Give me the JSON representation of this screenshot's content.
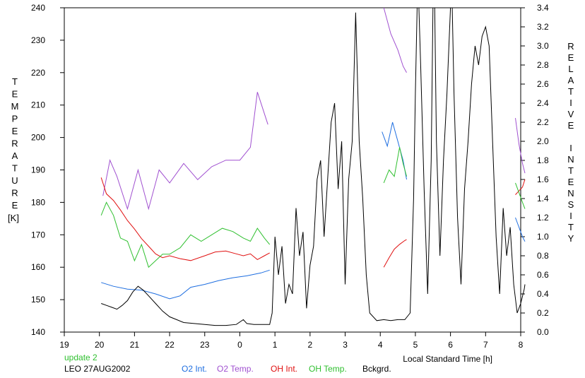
{
  "chart_data": {
    "type": "line",
    "title": "",
    "y_label_vertical": "TEMPERATURE",
    "y_unit": "[K]",
    "y2_label_vertical": "RELATIVE INTENSITY",
    "xlabel": "Local Standard Time [h]",
    "note": "update 2",
    "station_date": "LEO 27AUG2002",
    "xlim": [
      19,
      32
    ],
    "xticks": [
      19,
      20,
      21,
      22,
      23,
      24,
      25,
      26,
      27,
      28,
      29,
      30,
      31,
      32
    ],
    "xtick_labels": [
      "19",
      "20",
      "21",
      "22",
      "23",
      "0",
      "1",
      "2",
      "3",
      "4",
      "5",
      "6",
      "7",
      "8"
    ],
    "ylim": [
      140,
      240
    ],
    "yticks": [
      140,
      150,
      160,
      170,
      180,
      190,
      200,
      210,
      220,
      230,
      240
    ],
    "y2lim": [
      0.0,
      3.4
    ],
    "y2ticks": [
      "0.0",
      "0.2",
      "0.4",
      "0.6",
      "0.8",
      "1.0",
      "1.2",
      "1.4",
      "1.6",
      "1.8",
      "2.0",
      "2.2",
      "2.4",
      "2.6",
      "2.8",
      "3.0",
      "3.2",
      "3.4"
    ],
    "grid": false,
    "series": [
      {
        "name": "O2 Int.",
        "color": "#1e6ee0",
        "axis": "right",
        "segments": [
          [
            [
              20.05,
              0.52
            ],
            [
              20.4,
              0.48
            ],
            [
              20.8,
              0.45
            ],
            [
              21.2,
              0.44
            ],
            [
              21.6,
              0.4
            ],
            [
              22.0,
              0.35
            ],
            [
              22.3,
              0.38
            ],
            [
              22.6,
              0.47
            ],
            [
              23.0,
              0.5
            ],
            [
              23.4,
              0.54
            ],
            [
              23.8,
              0.57
            ],
            [
              24.2,
              0.59
            ],
            [
              24.6,
              0.62
            ],
            [
              24.85,
              0.65
            ]
          ],
          [
            [
              28.05,
              2.1
            ],
            [
              28.2,
              1.95
            ],
            [
              28.35,
              2.2
            ],
            [
              28.5,
              2.0
            ],
            [
              28.65,
              1.8
            ],
            [
              28.75,
              1.6
            ]
          ],
          [
            [
              31.85,
              1.2
            ],
            [
              31.95,
              1.1
            ],
            [
              32.05,
              1.0
            ],
            [
              32.12,
              0.95
            ]
          ]
        ]
      },
      {
        "name": "O2 Temp.",
        "color": "#a050d0",
        "axis": "left",
        "segments": [
          [
            [
              20.1,
              182
            ],
            [
              20.3,
              193
            ],
            [
              20.5,
              188
            ],
            [
              20.8,
              178
            ],
            [
              21.1,
              190
            ],
            [
              21.4,
              178
            ],
            [
              21.7,
              190
            ],
            [
              22.0,
              186
            ],
            [
              22.4,
              192
            ],
            [
              22.8,
              187
            ],
            [
              23.2,
              191
            ],
            [
              23.6,
              193
            ],
            [
              24.0,
              193
            ],
            [
              24.3,
              197
            ],
            [
              24.5,
              214
            ],
            [
              24.8,
              204
            ]
          ],
          [
            [
              28.1,
              240
            ],
            [
              28.3,
              232
            ],
            [
              28.5,
              227
            ],
            [
              28.65,
              222
            ],
            [
              28.75,
              220
            ]
          ],
          [
            [
              31.85,
              206
            ],
            [
              31.95,
              198
            ],
            [
              32.05,
              192
            ],
            [
              32.12,
              189
            ]
          ]
        ]
      },
      {
        "name": "OH Int.",
        "color": "#e01010",
        "axis": "right",
        "segments": [
          [
            [
              20.05,
              1.62
            ],
            [
              20.2,
              1.45
            ],
            [
              20.4,
              1.38
            ],
            [
              20.6,
              1.28
            ],
            [
              20.8,
              1.17
            ],
            [
              21.0,
              1.08
            ],
            [
              21.2,
              0.98
            ],
            [
              21.4,
              0.9
            ],
            [
              21.6,
              0.82
            ],
            [
              21.8,
              0.78
            ],
            [
              22.0,
              0.8
            ],
            [
              22.3,
              0.77
            ],
            [
              22.6,
              0.75
            ],
            [
              23.0,
              0.8
            ],
            [
              23.3,
              0.84
            ],
            [
              23.6,
              0.85
            ],
            [
              23.9,
              0.82
            ],
            [
              24.1,
              0.8
            ],
            [
              24.3,
              0.82
            ],
            [
              24.5,
              0.76
            ],
            [
              24.7,
              0.8
            ],
            [
              24.85,
              0.83
            ]
          ],
          [
            [
              28.1,
              0.68
            ],
            [
              28.25,
              0.78
            ],
            [
              28.4,
              0.87
            ],
            [
              28.55,
              0.92
            ],
            [
              28.7,
              0.96
            ],
            [
              28.75,
              0.97
            ]
          ],
          [
            [
              31.85,
              1.44
            ],
            [
              31.95,
              1.48
            ],
            [
              32.05,
              1.52
            ],
            [
              32.12,
              1.6
            ]
          ]
        ]
      },
      {
        "name": "OH Temp.",
        "color": "#30c030",
        "axis": "left",
        "segments": [
          [
            [
              20.05,
              176
            ],
            [
              20.2,
              180
            ],
            [
              20.4,
              176
            ],
            [
              20.6,
              169
            ],
            [
              20.8,
              168
            ],
            [
              21.0,
              162
            ],
            [
              21.2,
              167
            ],
            [
              21.4,
              160
            ],
            [
              21.6,
              162
            ],
            [
              21.8,
              164
            ],
            [
              22.0,
              164
            ],
            [
              22.3,
              166
            ],
            [
              22.6,
              170
            ],
            [
              22.9,
              168
            ],
            [
              23.2,
              170
            ],
            [
              23.5,
              172
            ],
            [
              23.8,
              171
            ],
            [
              24.1,
              169
            ],
            [
              24.3,
              168
            ],
            [
              24.5,
              172
            ],
            [
              24.7,
              169
            ],
            [
              24.85,
              167
            ]
          ],
          [
            [
              28.1,
              186
            ],
            [
              28.25,
              190
            ],
            [
              28.4,
              188
            ],
            [
              28.55,
              197
            ],
            [
              28.65,
              192
            ],
            [
              28.75,
              188
            ]
          ],
          [
            [
              31.85,
              186
            ],
            [
              31.95,
              183
            ],
            [
              32.05,
              180
            ],
            [
              32.12,
              178
            ]
          ]
        ]
      },
      {
        "name": "Bckgrd.",
        "color": "#000000",
        "axis": "right",
        "segments": [
          [
            [
              20.05,
              0.3
            ],
            [
              20.2,
              0.28
            ],
            [
              20.35,
              0.26
            ],
            [
              20.5,
              0.24
            ],
            [
              20.65,
              0.28
            ],
            [
              20.8,
              0.33
            ],
            [
              20.95,
              0.42
            ],
            [
              21.1,
              0.48
            ],
            [
              21.25,
              0.44
            ],
            [
              21.4,
              0.38
            ],
            [
              21.6,
              0.3
            ],
            [
              21.8,
              0.22
            ],
            [
              22.0,
              0.16
            ],
            [
              22.2,
              0.13
            ],
            [
              22.4,
              0.1
            ],
            [
              22.7,
              0.09
            ],
            [
              23.0,
              0.08
            ],
            [
              23.3,
              0.07
            ],
            [
              23.6,
              0.07
            ],
            [
              23.9,
              0.08
            ],
            [
              24.1,
              0.13
            ],
            [
              24.2,
              0.09
            ],
            [
              24.4,
              0.08
            ],
            [
              24.6,
              0.08
            ],
            [
              24.85,
              0.08
            ],
            [
              24.92,
              0.2
            ],
            [
              25.0,
              1.0
            ],
            [
              25.1,
              0.6
            ],
            [
              25.2,
              0.9
            ],
            [
              25.3,
              0.3
            ],
            [
              25.4,
              0.5
            ],
            [
              25.5,
              0.4
            ],
            [
              25.6,
              1.3
            ],
            [
              25.7,
              0.8
            ],
            [
              25.8,
              1.05
            ],
            [
              25.9,
              0.25
            ],
            [
              26.0,
              0.7
            ],
            [
              26.1,
              0.9
            ],
            [
              26.2,
              1.6
            ],
            [
              26.3,
              1.8
            ],
            [
              26.4,
              1.0
            ],
            [
              26.5,
              1.6
            ],
            [
              26.6,
              2.2
            ],
            [
              26.7,
              2.4
            ],
            [
              26.8,
              1.5
            ],
            [
              26.9,
              2.0
            ],
            [
              27.0,
              0.5
            ],
            [
              27.1,
              1.6
            ],
            [
              27.2,
              2.0
            ],
            [
              27.3,
              3.35
            ],
            [
              27.4,
              2.0
            ],
            [
              27.5,
              1.4
            ],
            [
              27.6,
              0.6
            ],
            [
              27.7,
              0.2
            ],
            [
              27.9,
              0.12
            ],
            [
              28.1,
              0.13
            ],
            [
              28.3,
              0.12
            ],
            [
              28.5,
              0.13
            ],
            [
              28.7,
              0.13
            ],
            [
              28.85,
              0.2
            ],
            [
              28.95,
              1.4
            ],
            [
              29.0,
              2.5
            ],
            [
              29.05,
              3.4
            ],
            [
              29.1,
              3.4
            ],
            [
              29.15,
              2.8
            ],
            [
              29.25,
              1.5
            ],
            [
              29.35,
              0.4
            ],
            [
              29.45,
              1.8
            ],
            [
              29.5,
              3.4
            ],
            [
              29.55,
              3.4
            ],
            [
              29.6,
              2.0
            ],
            [
              29.7,
              0.8
            ],
            [
              29.8,
              1.8
            ],
            [
              29.9,
              2.5
            ],
            [
              30.0,
              3.4
            ],
            [
              30.05,
              3.4
            ],
            [
              30.1,
              2.5
            ],
            [
              30.2,
              1.2
            ],
            [
              30.3,
              0.5
            ],
            [
              30.4,
              1.5
            ],
            [
              30.5,
              2.0
            ],
            [
              30.6,
              2.6
            ],
            [
              30.7,
              3.0
            ],
            [
              30.8,
              2.8
            ],
            [
              30.9,
              3.1
            ],
            [
              31.0,
              3.2
            ],
            [
              31.1,
              3.0
            ],
            [
              31.2,
              2.0
            ],
            [
              31.3,
              1.0
            ],
            [
              31.4,
              0.4
            ],
            [
              31.5,
              1.3
            ],
            [
              31.6,
              0.8
            ],
            [
              31.7,
              1.1
            ],
            [
              31.8,
              0.5
            ],
            [
              31.9,
              0.2
            ],
            [
              32.0,
              0.3
            ],
            [
              32.1,
              0.45
            ],
            [
              32.12,
              0.5
            ]
          ]
        ]
      }
    ]
  }
}
